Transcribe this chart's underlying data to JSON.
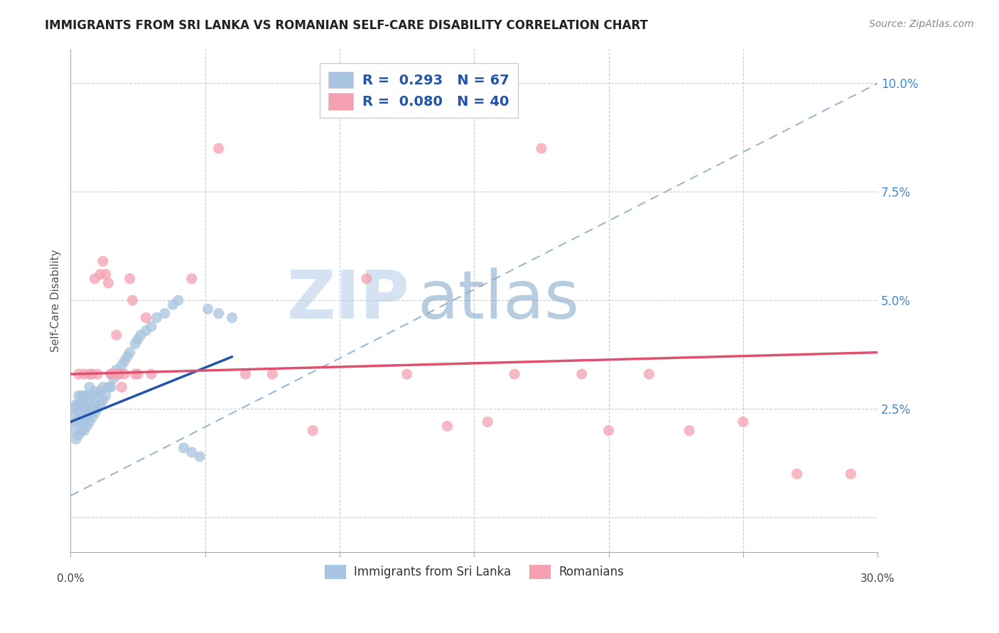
{
  "title": "IMMIGRANTS FROM SRI LANKA VS ROMANIAN SELF-CARE DISABILITY CORRELATION CHART",
  "source": "Source: ZipAtlas.com",
  "ylabel": "Self-Care Disability",
  "y_ticks": [
    0.0,
    0.025,
    0.05,
    0.075,
    0.1
  ],
  "y_tick_labels": [
    "",
    "2.5%",
    "5.0%",
    "7.5%",
    "10.0%"
  ],
  "x_ticks": [
    0.0,
    0.05,
    0.1,
    0.15,
    0.2,
    0.25,
    0.3
  ],
  "xlim": [
    0.0,
    0.3
  ],
  "ylim": [
    -0.008,
    0.108
  ],
  "sri_lanka_R": 0.293,
  "sri_lanka_N": 67,
  "romanian_R": 0.08,
  "romanian_N": 40,
  "sri_lanka_color": "#a8c4e0",
  "romanian_color": "#f4a0b0",
  "sri_lanka_line_color": "#2255aa",
  "romanian_line_color": "#e05070",
  "dashed_line_color": "#8aaccc",
  "background_color": "#ffffff",
  "watermark_zip": "ZIP",
  "watermark_atlas": "atlas",
  "sri_lanka_x": [
    0.001,
    0.001,
    0.001,
    0.002,
    0.002,
    0.002,
    0.002,
    0.003,
    0.003,
    0.003,
    0.003,
    0.003,
    0.004,
    0.004,
    0.004,
    0.004,
    0.005,
    0.005,
    0.005,
    0.005,
    0.005,
    0.006,
    0.006,
    0.006,
    0.006,
    0.007,
    0.007,
    0.007,
    0.007,
    0.008,
    0.008,
    0.008,
    0.009,
    0.009,
    0.009,
    0.01,
    0.01,
    0.011,
    0.011,
    0.012,
    0.012,
    0.013,
    0.014,
    0.015,
    0.015,
    0.016,
    0.017,
    0.018,
    0.019,
    0.02,
    0.021,
    0.022,
    0.024,
    0.025,
    0.026,
    0.028,
    0.03,
    0.032,
    0.035,
    0.038,
    0.04,
    0.042,
    0.045,
    0.048,
    0.051,
    0.055,
    0.06
  ],
  "sri_lanka_y": [
    0.02,
    0.022,
    0.025,
    0.018,
    0.022,
    0.024,
    0.026,
    0.019,
    0.022,
    0.024,
    0.026,
    0.028,
    0.02,
    0.023,
    0.026,
    0.028,
    0.02,
    0.022,
    0.024,
    0.026,
    0.028,
    0.021,
    0.023,
    0.025,
    0.028,
    0.022,
    0.024,
    0.027,
    0.03,
    0.023,
    0.025,
    0.028,
    0.024,
    0.026,
    0.029,
    0.025,
    0.028,
    0.026,
    0.029,
    0.027,
    0.03,
    0.028,
    0.03,
    0.03,
    0.033,
    0.032,
    0.034,
    0.033,
    0.035,
    0.036,
    0.037,
    0.038,
    0.04,
    0.041,
    0.042,
    0.043,
    0.044,
    0.046,
    0.047,
    0.049,
    0.05,
    0.016,
    0.015,
    0.014,
    0.048,
    0.047,
    0.046
  ],
  "romanian_x": [
    0.003,
    0.005,
    0.007,
    0.008,
    0.009,
    0.01,
    0.011,
    0.012,
    0.013,
    0.014,
    0.015,
    0.016,
    0.017,
    0.018,
    0.019,
    0.02,
    0.022,
    0.023,
    0.024,
    0.025,
    0.028,
    0.03,
    0.045,
    0.055,
    0.065,
    0.075,
    0.09,
    0.11,
    0.125,
    0.14,
    0.155,
    0.165,
    0.175,
    0.19,
    0.2,
    0.215,
    0.23,
    0.25,
    0.27,
    0.29
  ],
  "romanian_y": [
    0.033,
    0.033,
    0.033,
    0.033,
    0.055,
    0.033,
    0.056,
    0.059,
    0.056,
    0.054,
    0.033,
    0.033,
    0.042,
    0.033,
    0.03,
    0.033,
    0.055,
    0.05,
    0.033,
    0.033,
    0.046,
    0.033,
    0.055,
    0.085,
    0.033,
    0.033,
    0.02,
    0.055,
    0.033,
    0.021,
    0.022,
    0.033,
    0.085,
    0.033,
    0.02,
    0.033,
    0.02,
    0.022,
    0.01,
    0.01
  ],
  "sri_lanka_trend_x": [
    0.0,
    0.06
  ],
  "sri_lanka_trend_y": [
    0.022,
    0.037
  ],
  "romanian_trend_x": [
    0.0,
    0.3
  ],
  "romanian_trend_y": [
    0.033,
    0.038
  ],
  "dashed_trend_x": [
    0.0,
    0.3
  ],
  "dashed_trend_y": [
    0.005,
    0.1
  ]
}
